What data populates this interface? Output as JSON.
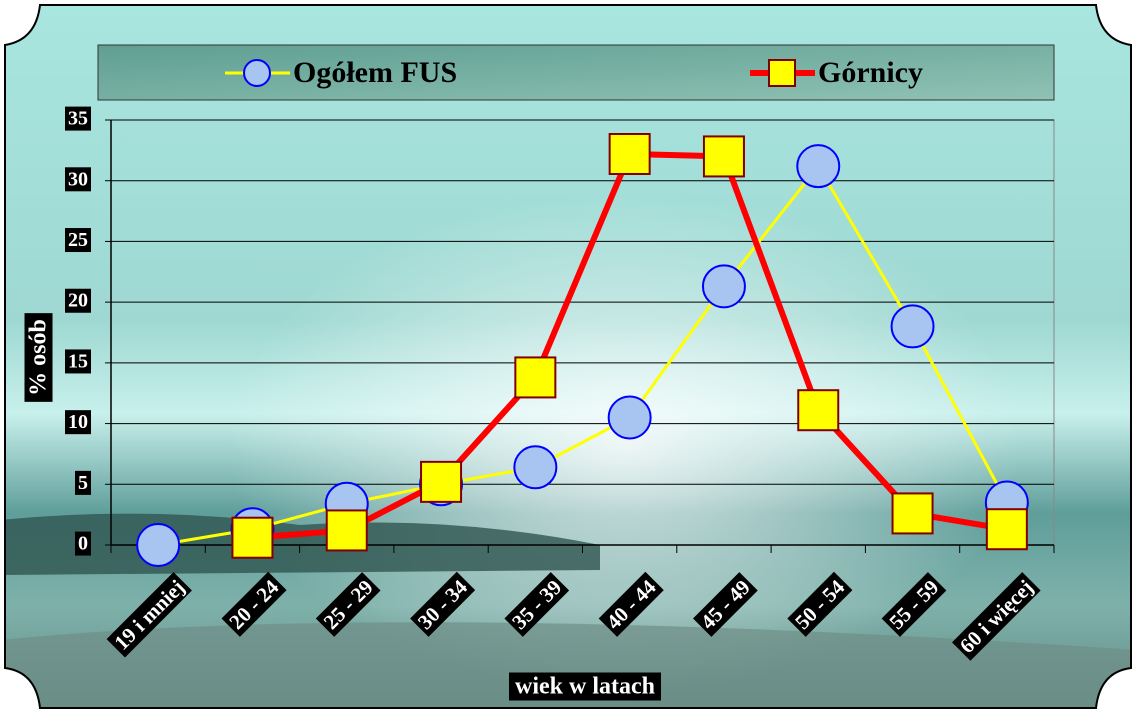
{
  "chart_data": {
    "type": "line",
    "categories": [
      "19 i mniej",
      "20 - 24",
      "25 - 29",
      "30 - 34",
      "35 - 39",
      "40 - 44",
      "45 - 49",
      "50 - 54",
      "55 - 59",
      "60 i więcej"
    ],
    "series": [
      {
        "name": "Ogółem FUS",
        "color": "#ffff00",
        "marker": "circle",
        "marker_fill": "#a8c4f0",
        "marker_edge": "#0000ff",
        "values": [
          0,
          1.3,
          3.4,
          5.0,
          6.4,
          10.5,
          21.3,
          31.2,
          18.0,
          3.5
        ]
      },
      {
        "name": "Górnicy",
        "color": "#ff0000",
        "marker": "square",
        "marker_fill": "#ffff00",
        "marker_edge": "#800000",
        "values": [
          null,
          0.6,
          1.2,
          5.2,
          13.8,
          32.2,
          32.0,
          11.1,
          2.6,
          1.3
        ]
      }
    ],
    "ylabel": "% osób",
    "xlabel": "wiek w latach",
    "ylim": [
      0,
      35
    ],
    "yticks": [
      0,
      5,
      10,
      15,
      20,
      25,
      30,
      35
    ],
    "grid": true,
    "legend": "top"
  }
}
